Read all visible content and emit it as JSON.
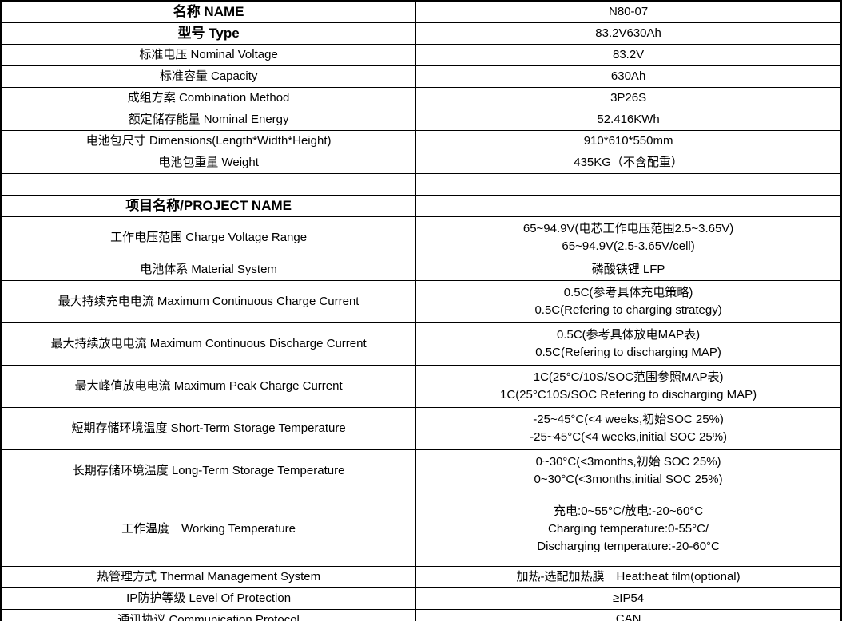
{
  "table": {
    "colors": {
      "border": "#000000",
      "background": "#ffffff",
      "text": "#000000"
    },
    "rows": [
      {
        "label": "名称 NAME",
        "bold": true,
        "value": [
          "N80-07"
        ]
      },
      {
        "label": "型号 Type",
        "bold": true,
        "value": [
          "83.2V630Ah"
        ]
      },
      {
        "label": "标准电压 Nominal Voltage",
        "bold": false,
        "value": [
          "83.2V"
        ]
      },
      {
        "label": "标准容量 Capacity",
        "bold": false,
        "value": [
          "630Ah"
        ]
      },
      {
        "label": "成组方案 Combination Method",
        "bold": false,
        "value": [
          "3P26S"
        ]
      },
      {
        "label": "额定储存能量 Nominal Energy",
        "bold": false,
        "value": [
          "52.416KWh"
        ]
      },
      {
        "label": "电池包尺寸 Dimensions(Length*Width*Height)",
        "bold": false,
        "value": [
          "910*610*550mm"
        ]
      },
      {
        "label": "电池包重量 Weight",
        "bold": false,
        "value": [
          "435KG（不含配重）"
        ]
      },
      {
        "label": "",
        "bold": false,
        "value": []
      },
      {
        "label": "项目名称/PROJECT NAME",
        "bold": true,
        "value": []
      },
      {
        "label": "工作电压范围 Charge Voltage Range",
        "bold": false,
        "value": [
          "65~94.9V(电芯工作电压范围2.5~3.65V)",
          "65~94.9V(2.5-3.65V/cell)"
        ]
      },
      {
        "label": "电池体系 Material System",
        "bold": false,
        "value": [
          "磷酸铁锂 LFP"
        ]
      },
      {
        "label": "最大持续充电电流 Maximum Continuous Charge Current",
        "bold": false,
        "value": [
          "0.5C(参考具体充电策略)",
          "0.5C(Refering to charging strategy)"
        ]
      },
      {
        "label": "最大持续放电电流 Maximum Continuous Discharge Current",
        "bold": false,
        "value": [
          "0.5C(参考具体放电MAP表)",
          "0.5C(Refering to discharging MAP)"
        ]
      },
      {
        "label": "最大峰值放电电流 Maximum Peak Charge Current",
        "bold": false,
        "value": [
          "1C(25°C/10S/SOC范围参照MAP表)",
          "1C(25°C10S/SOC Refering to discharging MAP)"
        ]
      },
      {
        "label": "短期存储环境温度 Short-Term Storage Temperature",
        "bold": false,
        "value": [
          "-25~45°C(<4 weeks,初始SOC 25%)",
          "-25~45°C(<4 weeks,initial SOC 25%)"
        ]
      },
      {
        "label": "长期存储环境温度 Long-Term Storage Temperature",
        "bold": false,
        "value": [
          "0~30°C(<3months,初始 SOC 25%)",
          "0~30°C(<3months,initial SOC 25%)"
        ]
      },
      {
        "label": "工作温度　Working Temperature",
        "bold": false,
        "value": [
          "充电:0~55°C/放电:-20~60°C",
          "Charging temperature:0-55°C/",
          "Discharging temperature:-20-60°C"
        ]
      },
      {
        "label": "热管理方式 Thermal Management System",
        "bold": false,
        "value": [
          "加热-选配加热膜　Heat:heat film(optional)"
        ]
      },
      {
        "label": "IP防护等级 Level Of Protection",
        "bold": false,
        "value": [
          "≥IP54"
        ]
      },
      {
        "label": "通讯协议 Communication Protocol",
        "bold": false,
        "value": [
          "CAN"
        ]
      }
    ]
  }
}
